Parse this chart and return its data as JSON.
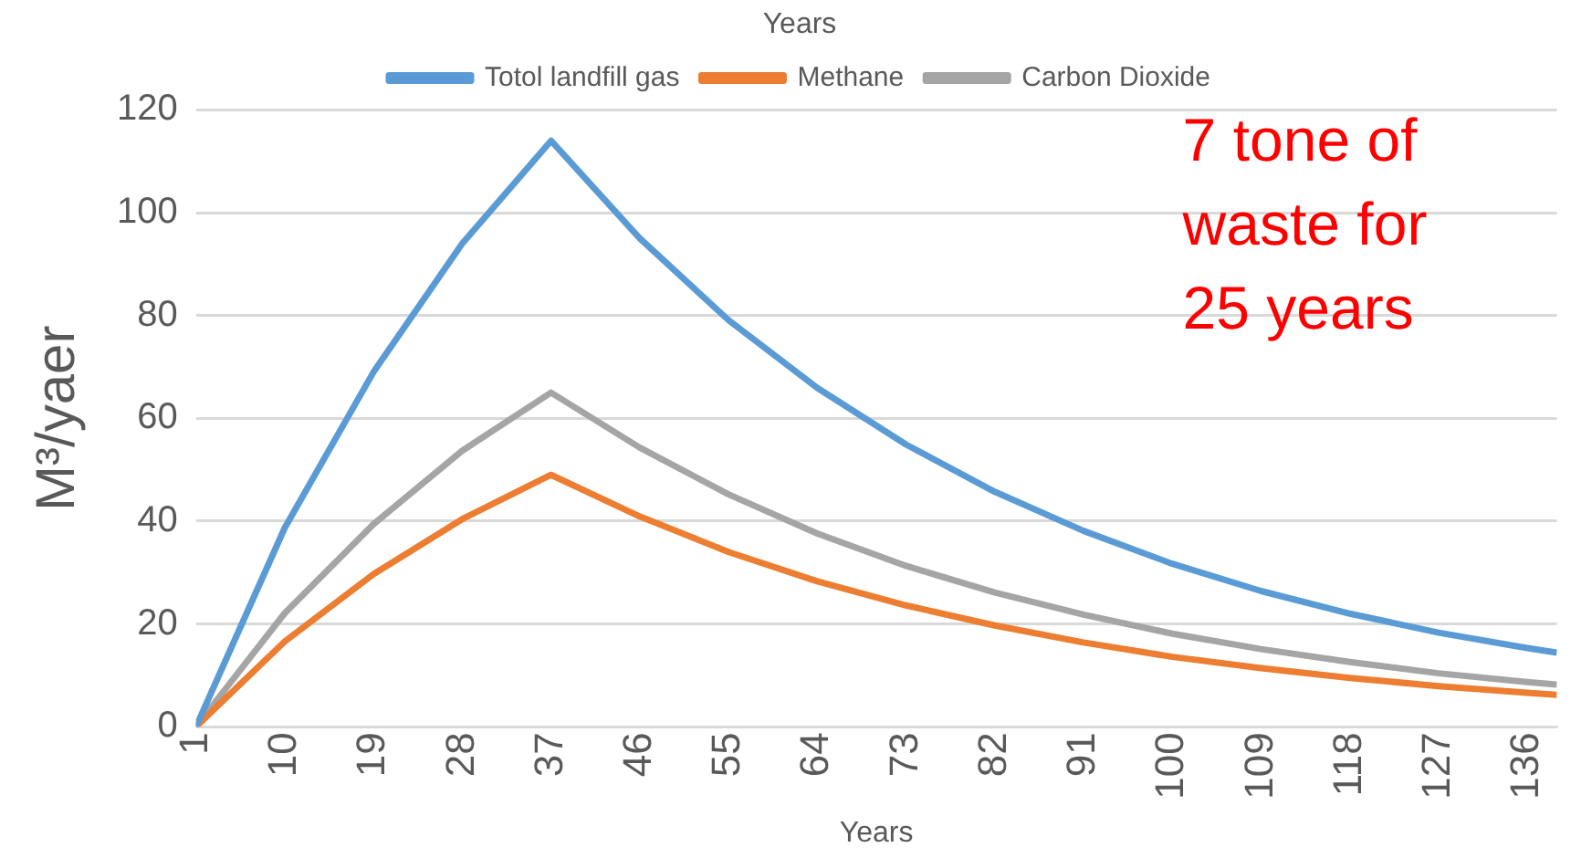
{
  "chart_data": {
    "type": "line",
    "title": "Years",
    "xlabel": "Years",
    "ylabel": "M³/yaer",
    "x": [
      1,
      10,
      19,
      28,
      37,
      46,
      55,
      64,
      73,
      82,
      91,
      100,
      109,
      118,
      127,
      136,
      139
    ],
    "series": [
      {
        "name": "Totol landfill gas",
        "color": "#5b9bd5",
        "values": [
          0,
          38.7,
          69,
          94,
          114,
          95,
          79.1,
          65.9,
          54.9,
          45.7,
          38.1,
          31.7,
          26.4,
          22,
          18.3,
          15.3,
          14.4
        ]
      },
      {
        "name": "Methane",
        "color": "#ed7d31",
        "values": [
          0,
          16.6,
          29.7,
          40.4,
          49,
          40.9,
          34,
          28.3,
          23.6,
          19.7,
          16.4,
          13.6,
          11.4,
          9.5,
          7.9,
          6.6,
          6.2
        ]
      },
      {
        "name": "Carbon Dioxide",
        "color": "#a5a5a5",
        "values": [
          0,
          22.1,
          39.4,
          53.7,
          65,
          54.3,
          45.2,
          37.6,
          31.3,
          26.1,
          21.8,
          18.1,
          15.1,
          12.6,
          10.4,
          8.7,
          8.2
        ]
      }
    ],
    "xlim": [
      1,
      139
    ],
    "xticks": [
      1,
      10,
      19,
      28,
      37,
      46,
      55,
      64,
      73,
      82,
      91,
      100,
      109,
      118,
      127,
      136
    ],
    "ylim": [
      0,
      120
    ],
    "yticks": [
      0,
      20,
      40,
      60,
      80,
      100,
      120
    ],
    "grid": "y",
    "legend": "top",
    "marker": "none",
    "line_style": "solid",
    "annotations": [
      "7 tone of waste for 25 years"
    ]
  }
}
